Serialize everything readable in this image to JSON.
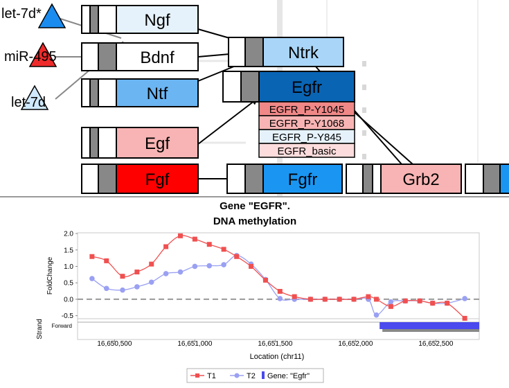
{
  "network": {
    "genes": {
      "ngf": "Ngf",
      "bdnf": "Bdnf",
      "ntf": "Ntf",
      "egf": "Egf",
      "fgf": "Fgf",
      "ntrk": "Ntrk",
      "egfr": "Egfr",
      "fgfr": "Fgfr",
      "grb2": "Grb2"
    },
    "mirnas": {
      "let7d_star": "let-7d*",
      "mir495": "miR-495",
      "let7d": "let-7d"
    },
    "egfr_subnodes": [
      "EGFR_P-Y1045",
      "EGFR_P-Y1068",
      "EGFR_P-Y845",
      "EGFR_basic"
    ],
    "colors": {
      "ngf": "#e6f2fb",
      "bdnf": "#ffffff",
      "ntf": "#6bb5f2",
      "egf": "#f8b4b4",
      "fgf": "#ff0000",
      "ntrk": "#a9d6f8",
      "egfr": "#0a64b4",
      "fgfr": "#1a96f2",
      "grb2": "#f8b4b4",
      "let7d_star": "#1a8cf0",
      "mir495": "#ef2a2a",
      "let7d": "#cfe8fb",
      "sub0": "#f08888",
      "sub1": "#f8b4b4",
      "sub2": "#e6f2fb",
      "sub3": "#fcdcdc"
    }
  },
  "chart": {
    "title_line1": "Gene \"EGFR\".",
    "title_line2": "DNA methylation",
    "ylabel": "FoldChange",
    "strand_label": "Strand",
    "forward_label": "Forward",
    "xlabel": "Location (chr11)",
    "legend": {
      "t1": "T1",
      "t2": "T2",
      "gene": "Gene: \"Egfr\""
    }
  },
  "chart_data": {
    "type": "line",
    "title": "Gene \"EGFR\". DNA methylation",
    "xlabel": "Location (chr11)",
    "ylabel": "FoldChange",
    "xlim": [
      16650270,
      16652770
    ],
    "ylim": [
      -0.5,
      2.0
    ],
    "xticks": [
      16650500,
      16651000,
      16651500,
      16652000,
      16652500
    ],
    "xtick_labels": [
      "16,650,500",
      "16,651,000",
      "16,651,500",
      "16,652,000",
      "16,652,500"
    ],
    "yticks": [
      2.0,
      1.5,
      1.0,
      0.5,
      0.0,
      -0.5
    ],
    "ytick_labels": [
      "2.0",
      "1.5",
      "1.0",
      "0.5",
      "0.0",
      "-0.5"
    ],
    "reference_line": 0.0,
    "grid": false,
    "legend_position": "bottom",
    "series": [
      {
        "name": "T1",
        "color": "#f05050",
        "x": [
          16650360,
          16650450,
          16650550,
          16650640,
          16650730,
          16650820,
          16650910,
          16651000,
          16651090,
          16651180,
          16651260,
          16651350,
          16651440,
          16651530,
          16651620,
          16651720,
          16651810,
          16651900,
          16651990,
          16652080,
          16652130,
          16652220,
          16652310,
          16652400,
          16652480,
          16652570,
          16652680
        ],
        "values": [
          1.3,
          1.17,
          0.7,
          0.83,
          1.07,
          1.6,
          1.93,
          1.83,
          1.67,
          1.52,
          1.3,
          1.0,
          0.58,
          0.24,
          0.08,
          0.0,
          0.0,
          0.0,
          0.0,
          0.08,
          0.0,
          -0.22,
          -0.05,
          -0.05,
          -0.12,
          -0.12,
          -0.58
        ]
      },
      {
        "name": "T2",
        "color": "#9aa0f2",
        "x": [
          16650360,
          16650450,
          16650550,
          16650640,
          16650730,
          16650820,
          16650910,
          16651000,
          16651090,
          16651180,
          16651260,
          16651350,
          16651440,
          16651530,
          16651620,
          16651720,
          16651810,
          16651900,
          16651990,
          16652080,
          16652130,
          16652220,
          16652310,
          16652400,
          16652480,
          16652570,
          16652680
        ],
        "values": [
          0.63,
          0.33,
          0.28,
          0.38,
          0.52,
          0.78,
          0.83,
          1.0,
          1.02,
          1.05,
          1.33,
          1.07,
          0.6,
          0.02,
          0.0,
          0.0,
          0.0,
          0.0,
          0.0,
          0.0,
          -0.48,
          -0.08,
          -0.05,
          -0.05,
          -0.12,
          -0.12,
          0.02
        ]
      }
    ],
    "gene_track": {
      "name": "Gene: \"Egfr\"",
      "strand": "Forward",
      "start": 16652150,
      "end": 16652770,
      "color": "#4a4aee"
    }
  }
}
